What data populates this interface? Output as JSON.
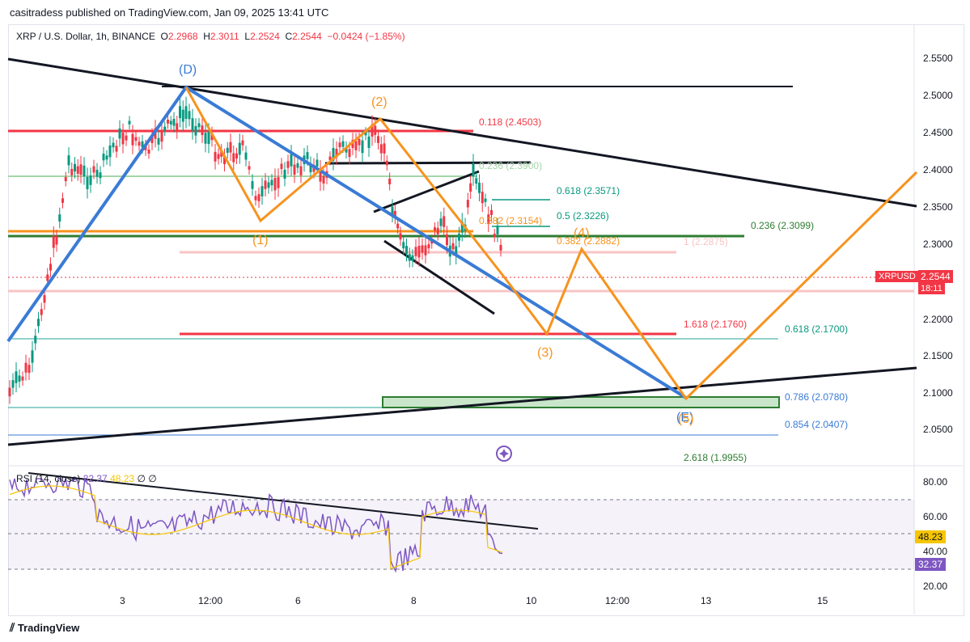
{
  "header": {
    "publisher": "casitradess published on TradingView.com, Jan 09, 2025 13:41 UTC"
  },
  "symbol": {
    "name": "XRP / U.S. Dollar, 1h, BINANCE",
    "open_label": "O",
    "open": "2.2968",
    "high_label": "H",
    "high": "2.3011",
    "low_label": "L",
    "low": "2.2524",
    "close_label": "C",
    "close": "2.2544",
    "change": "−0.0424 (−1.85%)"
  },
  "price_axis": [
    "2.5500",
    "2.5000",
    "2.4500",
    "2.4000",
    "2.3500",
    "2.3000",
    "2.2500",
    "2.2000",
    "2.1500",
    "2.1000",
    "2.0500"
  ],
  "current": {
    "ticker": "XRPUSD",
    "price": "2.2544",
    "countdown": "18:11"
  },
  "levels": {
    "l0118": "0.118 (2.4503)",
    "l0236a": "0.236 (2.3900)",
    "l0618a": "0.618 (2.3571)",
    "l0382a": "0.382 (2.3154)",
    "l05": "0.5 (2.3226)",
    "l0236b": "0.236 (2.3099)",
    "l0382b": "0.382 (2.2882)",
    "l1": "1 (2.2875)",
    "l1618": "1.618 (2.1760)",
    "l0618b": "0.618 (2.1700)",
    "l0786": "0.786 (2.0780)",
    "l0854": "0.854 (2.0407)",
    "l2618": "2.618 (1.9955)"
  },
  "waves": {
    "D": "(D)",
    "w1": "(1)",
    "w2": "(2)",
    "w3": "(3)",
    "w4": "(4)",
    "w5": "(5)",
    "E": "(E)"
  },
  "rsi": {
    "label": "RSI (14, close)",
    "v1": "32.37",
    "v2": "48.23",
    "x1": "∅",
    "x2": "∅",
    "axis": [
      "80.00",
      "60.00",
      "40.00",
      "20.00"
    ],
    "tag_ma": "48.23",
    "tag_rsi": "32.37"
  },
  "time_axis": [
    "3",
    "12:00",
    "6",
    "8",
    "10",
    "12:00",
    "13",
    "15"
  ],
  "footer": {
    "brand": "TradingView"
  },
  "colors": {
    "up": "#089981",
    "down": "#f23645",
    "wave": "#f7931e",
    "blue": "#3a7bd5",
    "green_zone": "#4caf50"
  }
}
